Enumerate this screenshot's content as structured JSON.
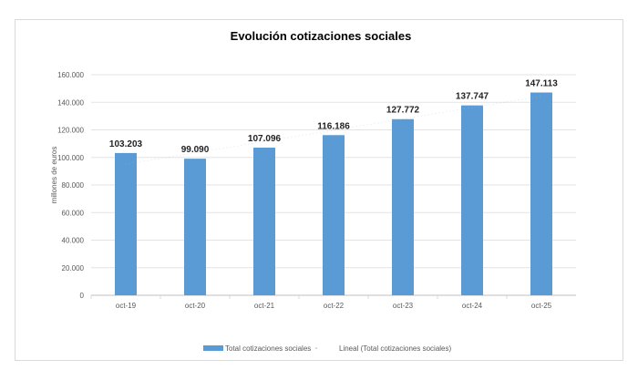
{
  "chart_data": {
    "type": "bar",
    "title": "Evolución cotizaciones sociales",
    "xlabel": "",
    "ylabel": "millones de euros",
    "categories": [
      "oct-19",
      "oct-20",
      "oct-21",
      "oct-22",
      "oct-23",
      "oct-24",
      "oct-25"
    ],
    "series": [
      {
        "name": "Total cotizaciones sociales",
        "values": [
          103203,
          99090,
          107096,
          116186,
          127772,
          137747,
          147113
        ],
        "color": "#5b9bd5"
      }
    ],
    "trendline": {
      "name": "Lineal (Total cotizaciones sociales)",
      "type": "linear"
    },
    "data_labels": [
      "103.203",
      "99.090",
      "107.096",
      "116.186",
      "127.772",
      "137.747",
      "147.113"
    ],
    "ylim": [
      0,
      160000
    ],
    "yticks": [
      0,
      20000,
      40000,
      60000,
      80000,
      100000,
      120000,
      140000,
      160000
    ],
    "ytick_labels": [
      "0",
      "20.000",
      "40.000",
      "60.000",
      "80.000",
      "100.000",
      "120.000",
      "140.000",
      "160.000"
    ],
    "grid": true,
    "legend_position": "bottom"
  }
}
